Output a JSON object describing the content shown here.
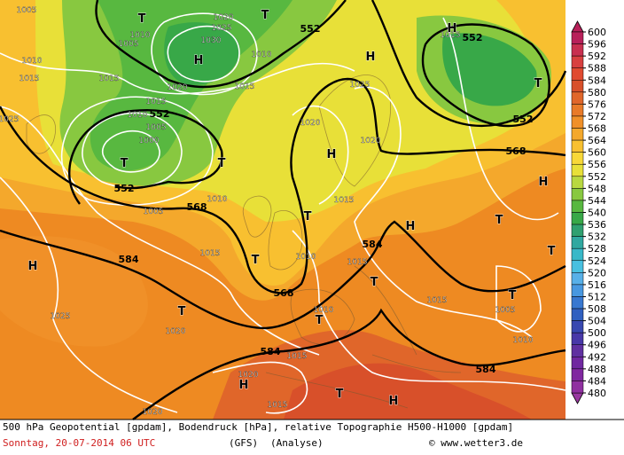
{
  "map": {
    "geopotential_labels": [
      552,
      552,
      552,
      552,
      552,
      568,
      568,
      584,
      584,
      568,
      584,
      584
    ],
    "pressure_labels": [
      1020,
      1025,
      1030,
      1010,
      1015,
      1020,
      1015,
      1015,
      1010,
      1005,
      1000,
      1020,
      1025,
      1020,
      1015,
      1010,
      1005,
      1015,
      1015,
      1010,
      1015,
      1015,
      1005,
      1010,
      1025,
      1020,
      1010,
      1015,
      1020,
      1015,
      1020,
      1005,
      1010,
      1015,
      1025,
      1005,
      1010
    ],
    "markers": [
      "T",
      "T",
      "H",
      "H",
      "H",
      "T",
      "T",
      "T",
      "H",
      "T",
      "H",
      "T",
      "H",
      "T",
      "H",
      "T",
      "T",
      "T",
      "T",
      "T",
      "H",
      "T",
      "H"
    ]
  },
  "colorbar": {
    "ticks": [
      600,
      596,
      592,
      588,
      584,
      580,
      576,
      572,
      568,
      564,
      560,
      556,
      552,
      548,
      544,
      540,
      536,
      532,
      528,
      524,
      520,
      516,
      512,
      508,
      504,
      500,
      496,
      492,
      488,
      484,
      480
    ],
    "colors": [
      "#b8205a",
      "#c83050",
      "#d84040",
      "#e04a30",
      "#d8502a",
      "#e0662a",
      "#e87a28",
      "#f09028",
      "#f4a82c",
      "#f8c030",
      "#f8d838",
      "#e8e038",
      "#b8d840",
      "#88c840",
      "#58b840",
      "#38a848",
      "#30a070",
      "#30a8a0",
      "#38b8c8",
      "#48c0e0",
      "#58b0e8",
      "#4898e0",
      "#3878d0",
      "#3060c0",
      "#3848b0",
      "#4838a8",
      "#6030a0",
      "#7028a0",
      "#8028a0",
      "#9030a0",
      "#9838a0"
    ]
  },
  "caption": {
    "title": "500 hPa Geopotential [gpdam], Bodendruck [hPa], relative Topographie H500-H1000 [gpdam]",
    "date": "Sonntag, 20-07-2014  06 UTC",
    "model": "(GFS)",
    "run": "(Analyse)",
    "copyright": "© www.wetter3.de"
  }
}
